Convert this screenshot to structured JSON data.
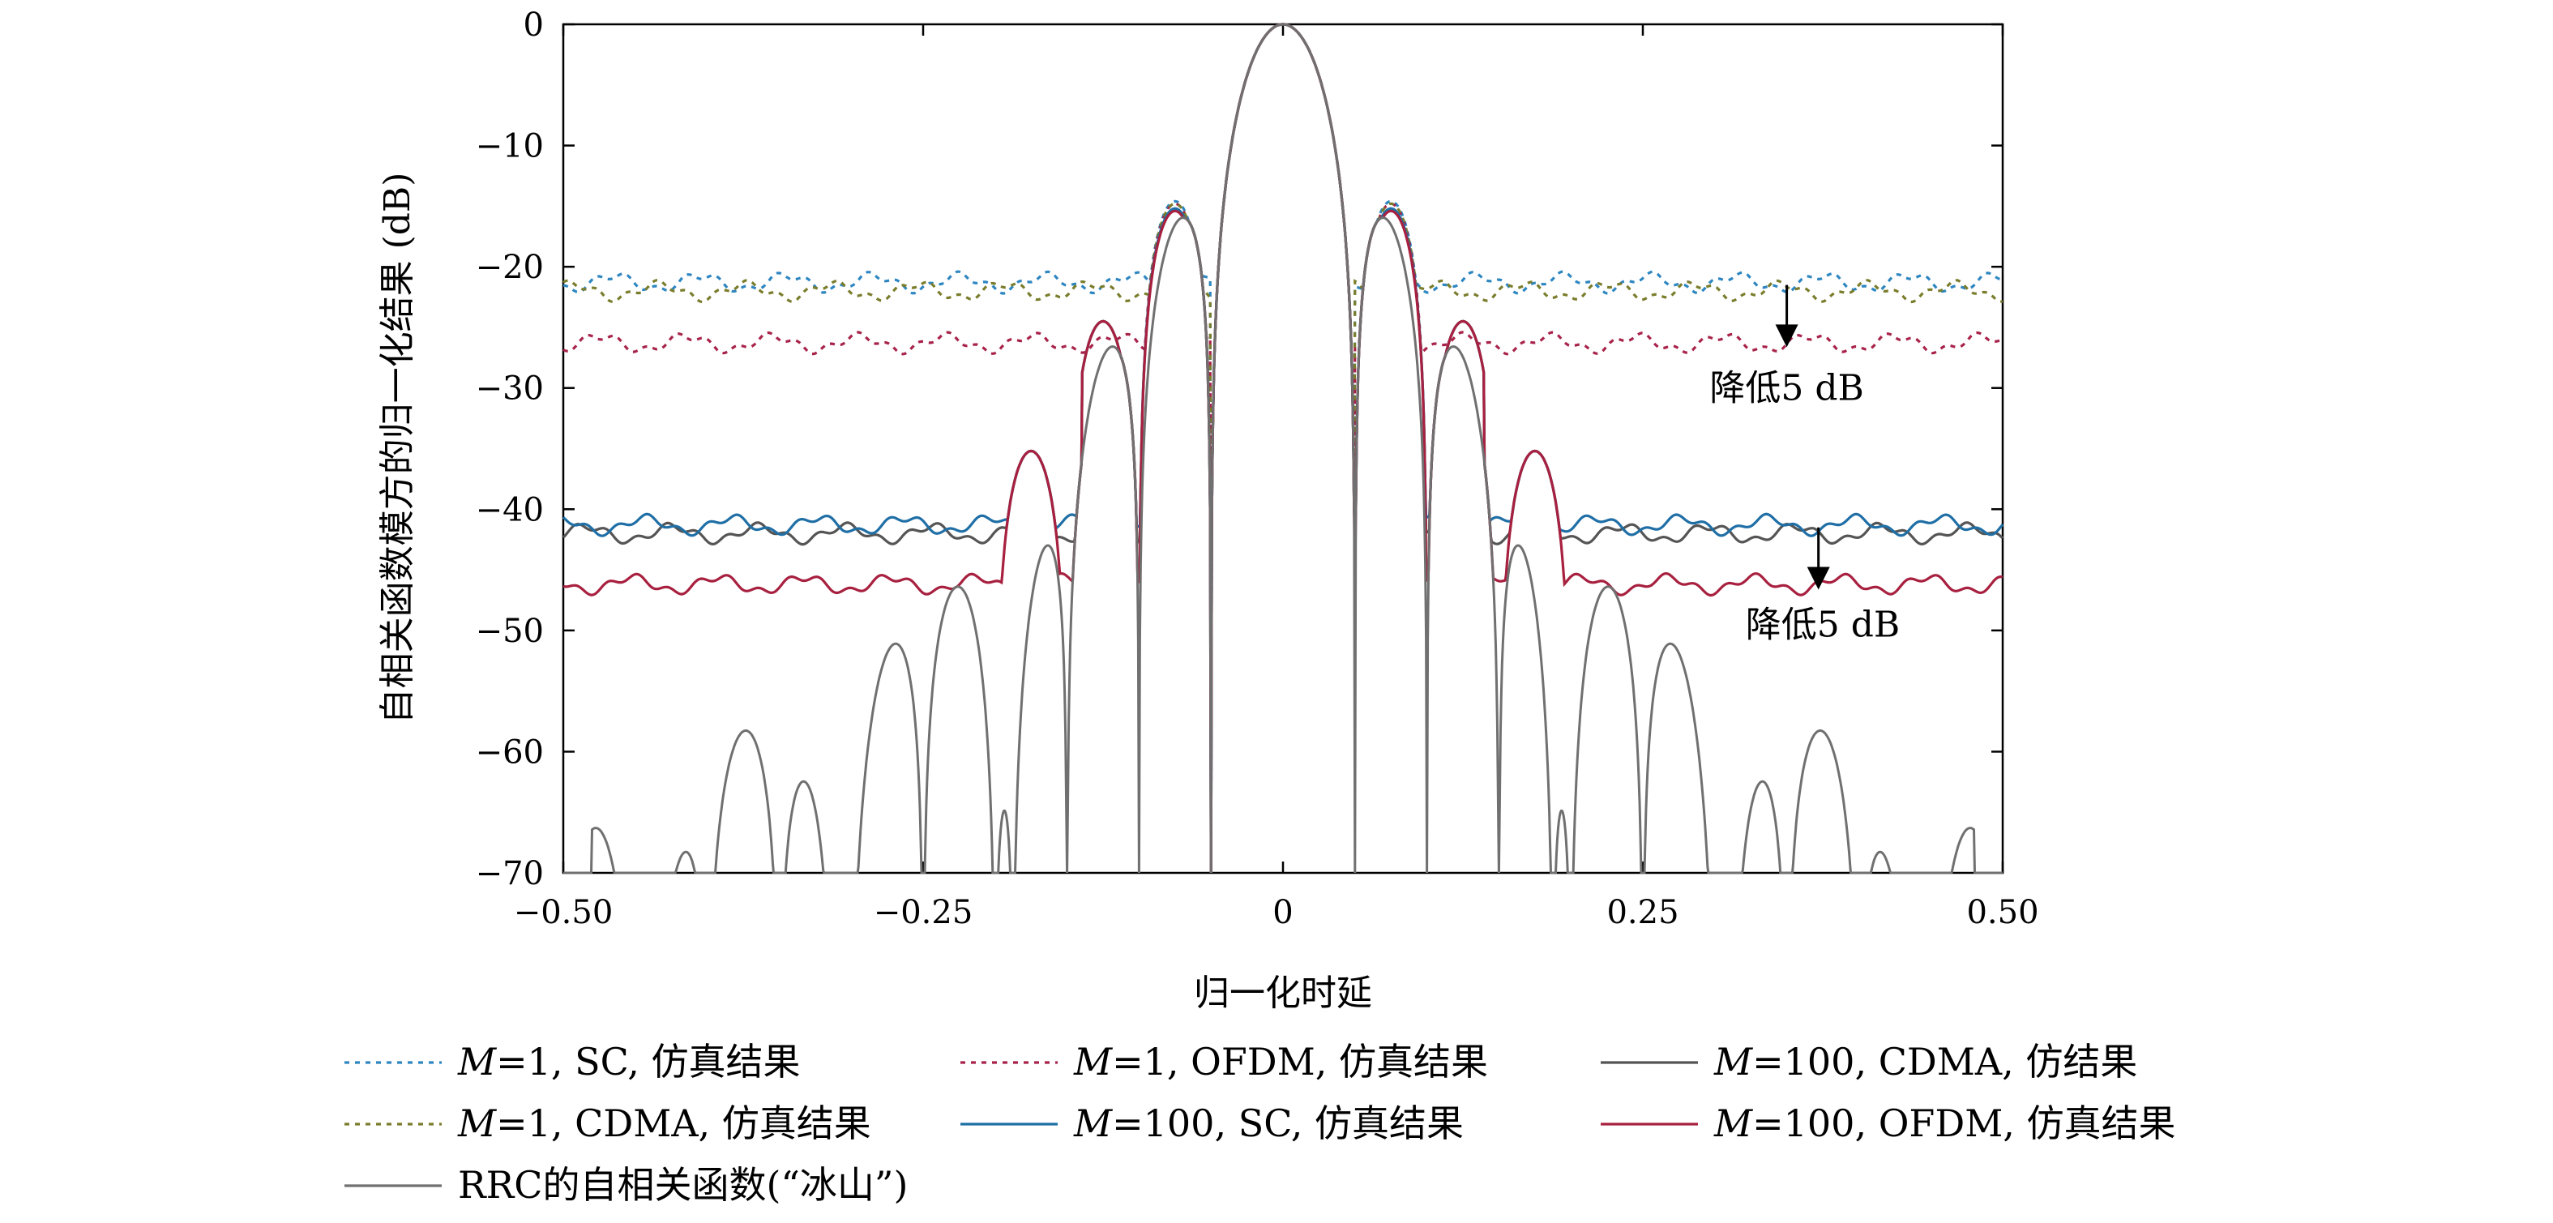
{
  "chart_data": {
    "type": "line",
    "xlabel": "归一化时延",
    "ylabel": "自相关函数模方的归一化结果 (dB)",
    "xlim": [
      -0.5,
      0.5
    ],
    "ylim": [
      -70,
      0
    ],
    "x_ticks": [
      -0.5,
      -0.25,
      0,
      0.25,
      0.5
    ],
    "x_tick_labels": [
      "−0.50",
      "−0.25",
      "0",
      "0.25",
      "0.50"
    ],
    "y_ticks": [
      0,
      -10,
      -20,
      -30,
      -40,
      -50,
      -60,
      -70
    ],
    "y_tick_labels": [
      "0",
      "−10",
      "−20",
      "−30",
      "−40",
      "−50",
      "−60",
      "−70"
    ],
    "grid": false,
    "legend_position": "bottom",
    "annotations": [
      {
        "text": "降低5 dB",
        "arrow_x": 0.35,
        "arrow_from": -21.5,
        "arrow_to": -26.5,
        "text_x": 0.35,
        "text_y": -30
      },
      {
        "text": "降低5 dB",
        "arrow_x": 0.372,
        "arrow_from": -41.5,
        "arrow_to": -46.5,
        "text_x": 0.375,
        "text_y": -49.5
      }
    ],
    "series": [
      {
        "id": "m1-sc",
        "prefix_italic": "M",
        "name": "=1, SC, 仿真结果",
        "color": "#2e86c1",
        "dash": true,
        "floor": -21.3,
        "peaks": [
          -14.6,
          -14.6
        ]
      },
      {
        "id": "m1-ofdm",
        "prefix_italic": "M",
        "name": "=1, OFDM, 仿真结果",
        "color": "#a8234a",
        "dash": true,
        "floor": -26.3,
        "peaks": [
          -14.8,
          -14.8
        ]
      },
      {
        "id": "m100-cdma",
        "prefix_italic": "M",
        "name": "=100, CDMA, 仿结果",
        "color": "#555555",
        "dash": false,
        "floor": -42.0,
        "peaks": [
          -15.2,
          -15.2
        ]
      },
      {
        "id": "m1-cdma",
        "prefix_italic": "M",
        "name": "=1, CDMA, 仿真结果",
        "color": "#7a7d2c",
        "dash": true,
        "floor": -22.0,
        "peaks": [
          -14.8,
          -14.8
        ]
      },
      {
        "id": "m100-sc",
        "prefix_italic": "M",
        "name": "=100, SC, 仿真结果",
        "color": "#1f6fa6",
        "dash": false,
        "floor": -41.3,
        "peaks": [
          -15.2,
          -15.2
        ]
      },
      {
        "id": "m100-ofdm",
        "prefix_italic": "M",
        "name": "=100, OFDM, 仿真结果",
        "color": "#a8203f",
        "dash": false,
        "floor": -46.2,
        "peaks": [
          -15.4,
          -15.4
        ]
      },
      {
        "id": "rrc",
        "prefix_italic": "",
        "name": "RRC的自相关函数(“冰山”)",
        "color": "#707070",
        "dash": false,
        "floor": null,
        "peaks": []
      }
    ]
  }
}
